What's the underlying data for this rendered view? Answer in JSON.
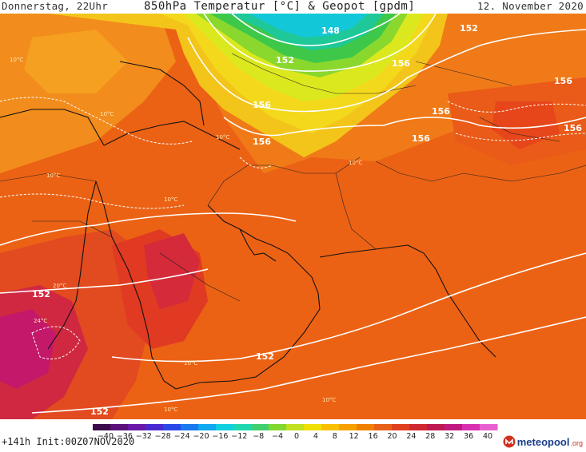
{
  "header": {
    "left": "Donnerstag, 22Uhr",
    "title": "850hPa Temperatur [°C] & Geopot [gpdm]",
    "right": "12. November 2020"
  },
  "map": {
    "contours": [
      "148",
      "152",
      "152",
      "156",
      "156",
      "156",
      "156",
      "156",
      "156",
      "156",
      "152",
      "152",
      "152"
    ],
    "temp_labels": [
      "10°C",
      "10°C",
      "10°C",
      "10°C",
      "10°C",
      "20°C",
      "24°C",
      "10°C",
      "10°C",
      "10°C",
      "10°C"
    ]
  },
  "colorbar": {
    "ticks": [
      "−40",
      "−36",
      "−32",
      "−28",
      "−24",
      "−20",
      "−16",
      "−12",
      "−8",
      "−4",
      "0",
      "4",
      "8",
      "12",
      "16",
      "20",
      "24",
      "28",
      "32",
      "36",
      "40"
    ],
    "colors": [
      "#3a0a4a",
      "#5a127a",
      "#6a18a8",
      "#4a2ad0",
      "#2a48e8",
      "#1a78f0",
      "#10a8f0",
      "#10d0e0",
      "#20d8b0",
      "#40d070",
      "#80d830",
      "#c0e020",
      "#f0e000",
      "#f8c000",
      "#f8a000",
      "#f08000",
      "#e86018",
      "#e04020",
      "#d02830",
      "#c01850",
      "#c01a80",
      "#d830b0",
      "#e860d0"
    ]
  },
  "footer": {
    "run_info": "+141h Init:00Z07NOV2020",
    "logo_main": "meteopool",
    "logo_suffix": ".org"
  }
}
